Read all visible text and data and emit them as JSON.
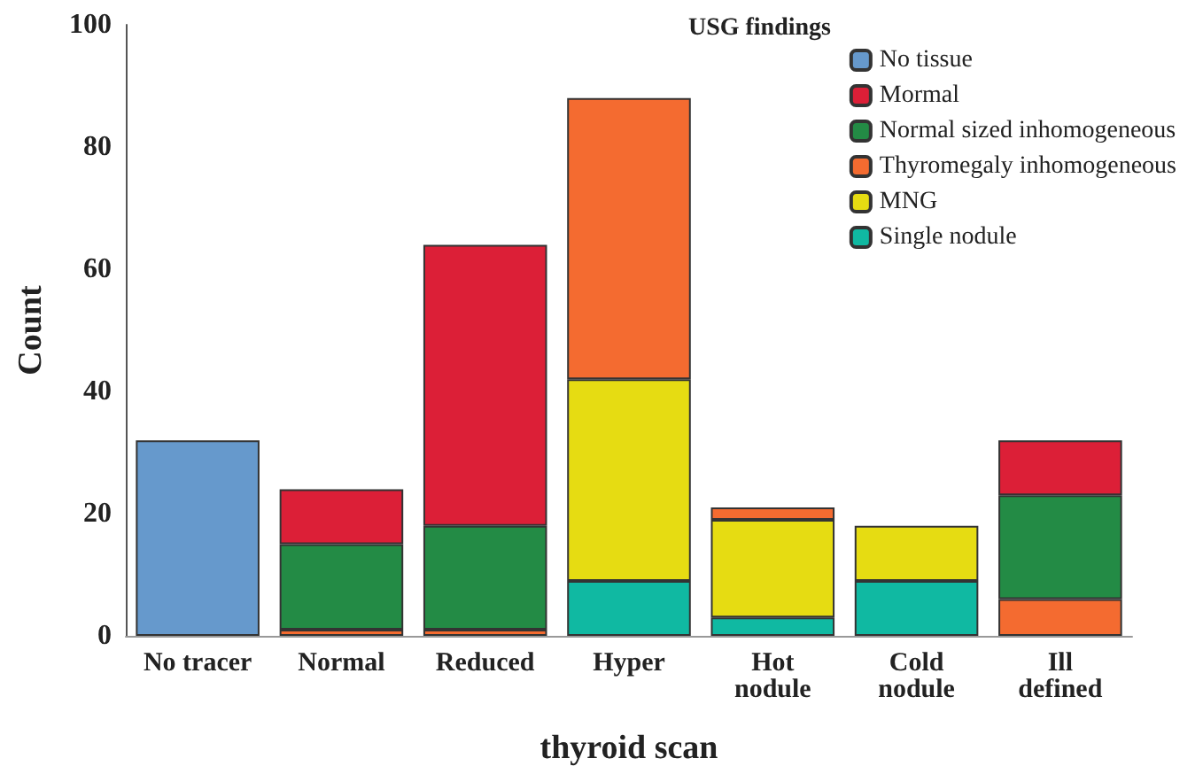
{
  "chart_data": {
    "type": "bar",
    "stacked": true,
    "xlabel": "thyroid scan",
    "ylabel": "Count",
    "legend_title": "USG findings",
    "legend": "top right",
    "grid": false,
    "categories": [
      "No tracer",
      "Normal",
      "Reduced",
      "Hyper",
      "Hot\nnodule",
      "Cold\nnodule",
      "Ill\ndefined"
    ],
    "ylim": [
      0,
      100
    ],
    "yticks": [
      0,
      20,
      40,
      60,
      80,
      100
    ],
    "series": [
      {
        "name": "Single nodule",
        "color": "#10b9a2",
        "values": [
          null,
          null,
          null,
          9,
          3,
          9,
          null
        ]
      },
      {
        "name": "MNG",
        "color": "#e6dc12",
        "values": [
          null,
          null,
          null,
          33,
          16,
          9,
          null
        ]
      },
      {
        "name": "Thyromegaly inhomogeneous",
        "color": "#f46b30",
        "values": [
          null,
          1,
          1,
          46,
          2,
          null,
          6
        ]
      },
      {
        "name": "Normal sized inhomogeneous",
        "color": "#238b45",
        "values": [
          null,
          14,
          17,
          null,
          null,
          null,
          17
        ]
      },
      {
        "name": "Mormal",
        "color": "#dc1f37",
        "values": [
          null,
          9,
          46,
          null,
          null,
          null,
          9
        ]
      },
      {
        "name": "No tissue",
        "color": "#6699cc",
        "values": [
          32,
          null,
          null,
          null,
          null,
          null,
          null
        ]
      }
    ]
  }
}
